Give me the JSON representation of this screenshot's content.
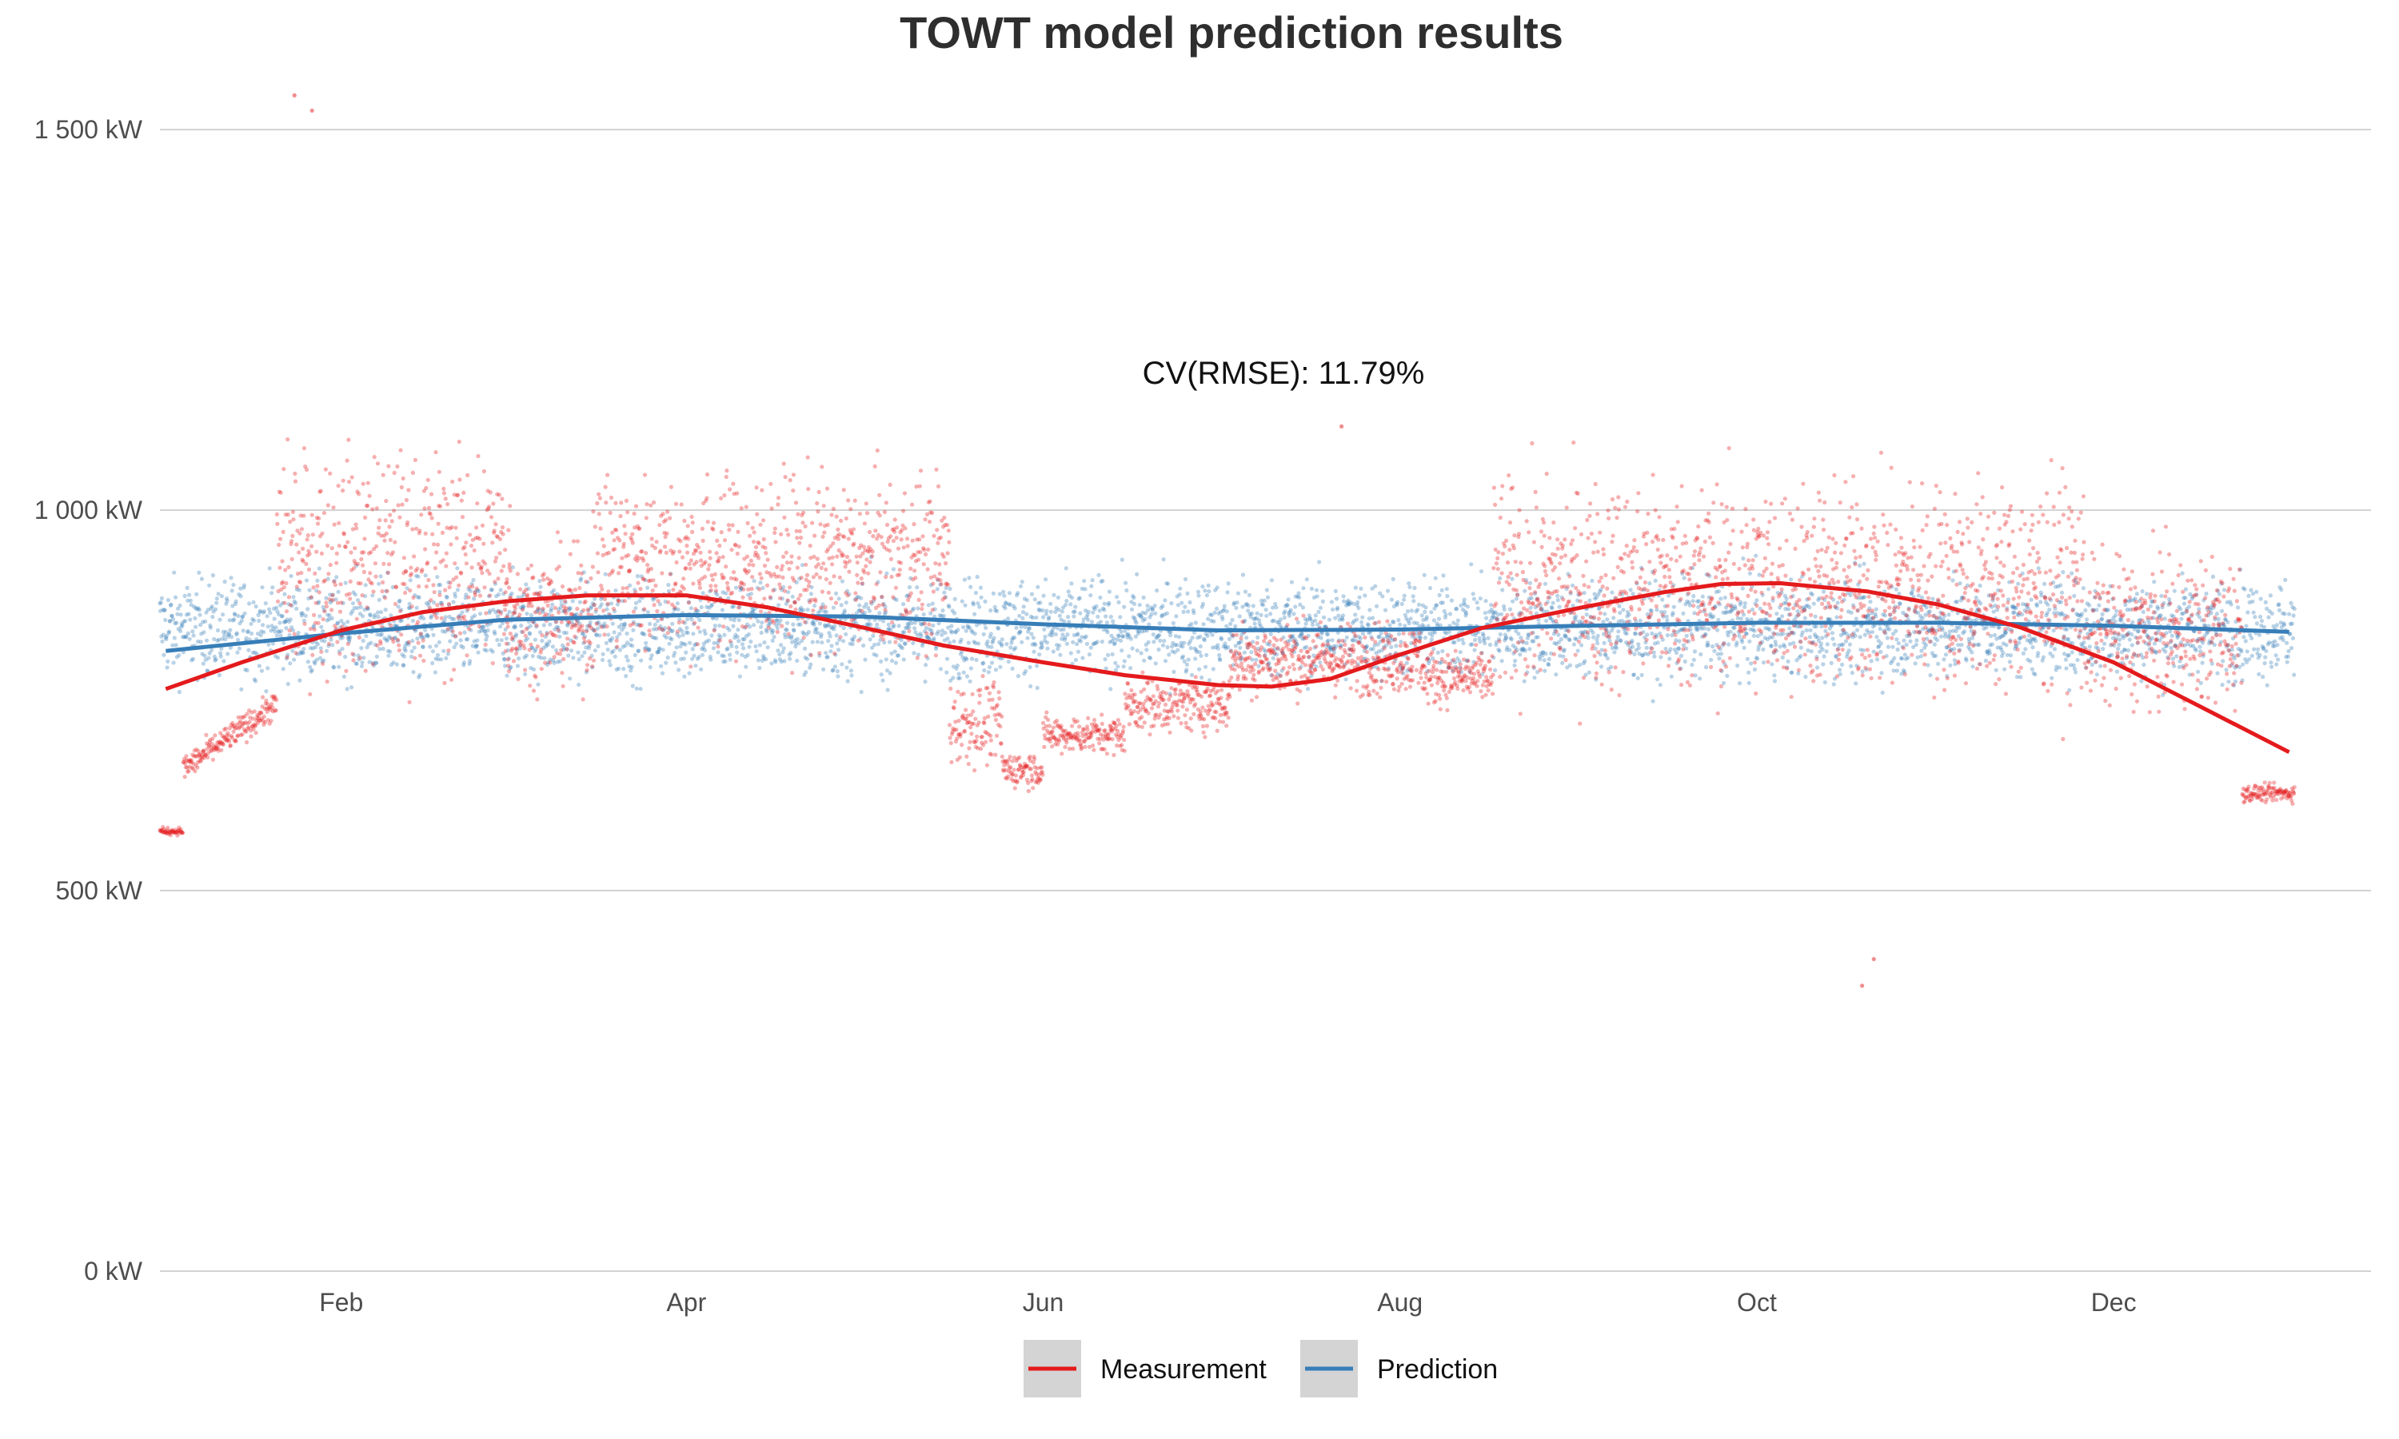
{
  "chart_data": {
    "type": "scatter",
    "title": "TOWT model prediction results",
    "annotation": "CV(RMSE): 11.79%",
    "xlabel": "",
    "ylabel": "",
    "x_range": [
      "2023-01-01",
      "2024-01-14"
    ],
    "ylim": [
      0,
      1560
    ],
    "y_ticks": [
      {
        "value": 0,
        "label": "0 kW"
      },
      {
        "value": 500,
        "label": "500 kW"
      },
      {
        "value": 1000,
        "label": "1 000 kW"
      },
      {
        "value": 1500,
        "label": "1 500 kW"
      }
    ],
    "x_ticks": [
      {
        "date": "2023-02-01",
        "label": "Feb"
      },
      {
        "date": "2023-04-01",
        "label": "Apr"
      },
      {
        "date": "2023-06-01",
        "label": "Jun"
      },
      {
        "date": "2023-08-01",
        "label": "Aug"
      },
      {
        "date": "2023-10-01",
        "label": "Oct"
      },
      {
        "date": "2023-12-01",
        "label": "Dec"
      }
    ],
    "grid": {
      "horizontal": true,
      "vertical": false
    },
    "legend_position": "bottom",
    "series": [
      {
        "name": "Measurement",
        "color": "#e41a1c",
        "smooth_trend": [
          {
            "x": "2023-01-02",
            "y": 765
          },
          {
            "x": "2023-01-15",
            "y": 800
          },
          {
            "x": "2023-02-01",
            "y": 842
          },
          {
            "x": "2023-02-15",
            "y": 866
          },
          {
            "x": "2023-03-01",
            "y": 880
          },
          {
            "x": "2023-03-15",
            "y": 888
          },
          {
            "x": "2023-04-01",
            "y": 888
          },
          {
            "x": "2023-04-15",
            "y": 872
          },
          {
            "x": "2023-05-01",
            "y": 846
          },
          {
            "x": "2023-05-15",
            "y": 822
          },
          {
            "x": "2023-06-01",
            "y": 800
          },
          {
            "x": "2023-06-15",
            "y": 783
          },
          {
            "x": "2023-07-01",
            "y": 770
          },
          {
            "x": "2023-07-10",
            "y": 768
          },
          {
            "x": "2023-07-20",
            "y": 778
          },
          {
            "x": "2023-08-01",
            "y": 810
          },
          {
            "x": "2023-08-15",
            "y": 845
          },
          {
            "x": "2023-09-01",
            "y": 872
          },
          {
            "x": "2023-09-15",
            "y": 892
          },
          {
            "x": "2023-09-25",
            "y": 903
          },
          {
            "x": "2023-10-05",
            "y": 904
          },
          {
            "x": "2023-10-20",
            "y": 893
          },
          {
            "x": "2023-11-01",
            "y": 876
          },
          {
            "x": "2023-11-15",
            "y": 846
          },
          {
            "x": "2023-12-01",
            "y": 800
          },
          {
            "x": "2023-12-15",
            "y": 745
          },
          {
            "x": "2023-12-31",
            "y": 682
          }
        ],
        "segments": [
          {
            "start": "2023-01-01",
            "end": "2023-01-04",
            "mean": 578,
            "spread": 8
          },
          {
            "start": "2023-01-05",
            "end": "2023-01-20",
            "mean_start": 660,
            "mean_end": 745,
            "spread": 30
          },
          {
            "start": "2023-01-21",
            "end": "2023-03-01",
            "mean": 930,
            "spread": 240
          },
          {
            "start": "2023-03-01",
            "end": "2023-03-15",
            "mean": 860,
            "spread": 140
          },
          {
            "start": "2023-03-16",
            "end": "2023-05-15",
            "mean": 930,
            "spread": 190
          },
          {
            "start": "2023-05-16",
            "end": "2023-05-24",
            "mean": 720,
            "spread": 90
          },
          {
            "start": "2023-05-25",
            "end": "2023-05-31",
            "mean": 660,
            "spread": 40
          },
          {
            "start": "2023-06-01",
            "end": "2023-06-14",
            "mean": 705,
            "spread": 40
          },
          {
            "start": "2023-06-15",
            "end": "2023-07-02",
            "mean": 745,
            "spread": 60
          },
          {
            "start": "2023-07-03",
            "end": "2023-08-04",
            "mean": 805,
            "spread": 80
          },
          {
            "start": "2023-08-05",
            "end": "2023-08-16",
            "mean": 780,
            "spread": 60
          },
          {
            "start": "2023-08-17",
            "end": "2023-11-25",
            "mean": 900,
            "spread": 230
          },
          {
            "start": "2023-11-26",
            "end": "2023-12-22",
            "mean": 840,
            "spread": 160
          },
          {
            "start": "2023-12-23",
            "end": "2023-12-31",
            "mean": 628,
            "spread": 18
          }
        ],
        "outliers": [
          {
            "x": "2023-01-24",
            "y": 1545
          },
          {
            "x": "2023-01-27",
            "y": 1525
          },
          {
            "x": "2023-07-22",
            "y": 1110
          },
          {
            "x": "2023-10-21",
            "y": 410
          },
          {
            "x": "2023-10-19",
            "y": 375
          }
        ]
      },
      {
        "name": "Prediction",
        "color": "#377eb8",
        "smooth_trend": [
          {
            "x": "2023-01-02",
            "y": 815
          },
          {
            "x": "2023-02-01",
            "y": 838
          },
          {
            "x": "2023-03-01",
            "y": 856
          },
          {
            "x": "2023-04-01",
            "y": 862
          },
          {
            "x": "2023-05-01",
            "y": 860
          },
          {
            "x": "2023-06-01",
            "y": 850
          },
          {
            "x": "2023-07-01",
            "y": 842
          },
          {
            "x": "2023-08-01",
            "y": 843
          },
          {
            "x": "2023-09-01",
            "y": 848
          },
          {
            "x": "2023-10-01",
            "y": 852
          },
          {
            "x": "2023-11-01",
            "y": 852
          },
          {
            "x": "2023-12-01",
            "y": 848
          },
          {
            "x": "2023-12-31",
            "y": 840
          }
        ],
        "segments": [
          {
            "start": "2023-01-01",
            "end": "2023-12-31",
            "mean": 845,
            "spread": 110
          }
        ]
      }
    ]
  }
}
